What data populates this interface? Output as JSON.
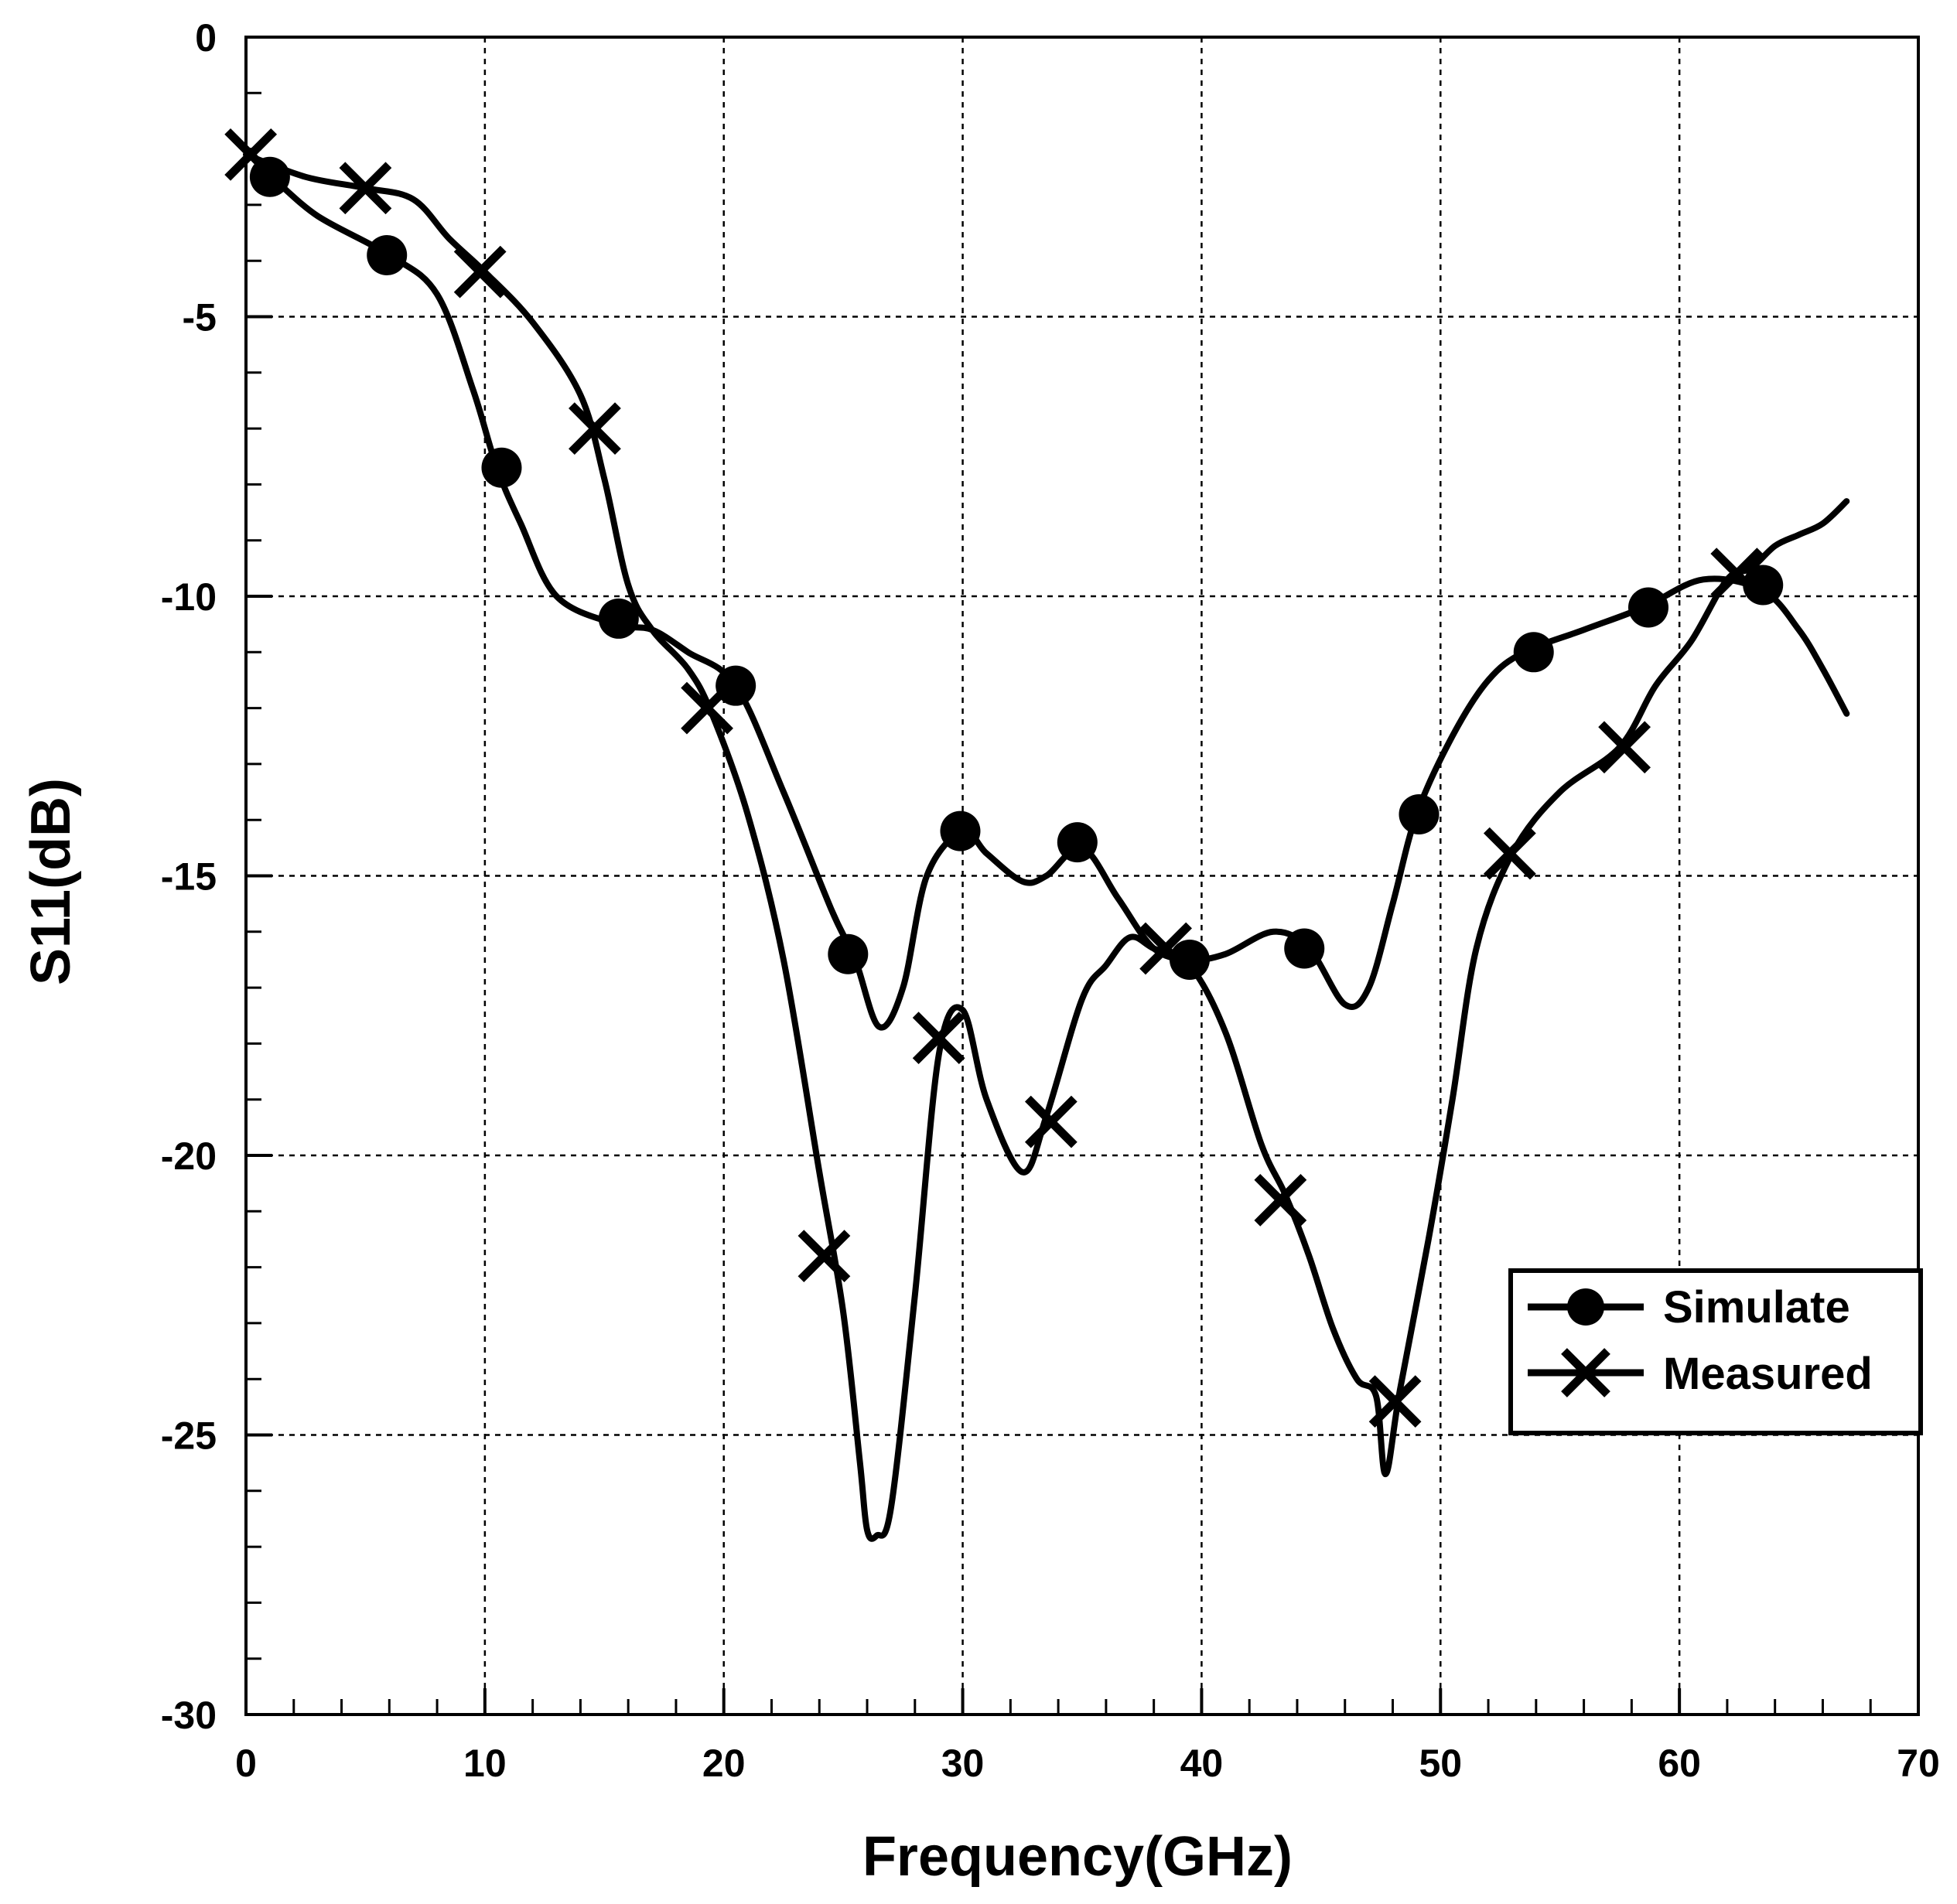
{
  "chart_data": {
    "type": "line",
    "xlabel": "Frequency(GHz)",
    "ylabel": "S11(dB)",
    "xlim": [
      0,
      70
    ],
    "ylim": [
      -30,
      0
    ],
    "x_ticks": [
      0,
      10,
      20,
      30,
      40,
      50,
      60,
      70
    ],
    "y_ticks": [
      0,
      -5,
      -10,
      -15,
      -20,
      -25,
      -30
    ],
    "grid": true,
    "legend_position": "lower-right",
    "series": [
      {
        "name": "Simulate",
        "marker": "circle",
        "color": "#000000",
        "x": [
          0.5,
          1,
          3,
          6,
          8,
          9.5,
          10.5,
          11.5,
          13,
          15.5,
          17,
          18.5,
          20.5,
          22.5,
          24.5,
          25.5,
          26.5,
          27.5,
          28.5,
          30,
          31,
          32.5,
          33.5,
          35,
          36.5,
          38,
          39.5,
          41,
          43,
          44.5,
          46,
          47,
          48,
          49,
          50.5,
          52,
          53.5,
          56,
          58.5,
          61,
          63.5,
          65,
          66,
          67
        ],
        "y": [
          -2.6,
          -2.5,
          -3.2,
          -3.9,
          -4.6,
          -6.3,
          -7.7,
          -8.7,
          -10,
          -10.5,
          -10.6,
          -11,
          -11.6,
          -13.5,
          -15.6,
          -16.5,
          -17.7,
          -17,
          -15,
          -14.2,
          -14.6,
          -15.1,
          -15,
          -14.5,
          -15.4,
          -16.3,
          -16.5,
          -16.4,
          -16,
          -16.3,
          -17.3,
          -17,
          -15.5,
          -13.9,
          -12.5,
          -11.5,
          -11,
          -10.6,
          -10.2,
          -9.7,
          -9.9,
          -10.6,
          -11.3,
          -12.1
        ],
        "marker_x": [
          1,
          5.9,
          10.7,
          15.6,
          20.5,
          25.2,
          29.9,
          34.8,
          39.5,
          44.3,
          49.1,
          53.9,
          58.7,
          63.5
        ],
        "marker_y": [
          -2.5,
          -3.9,
          -7.7,
          -10.4,
          -11.6,
          -16.4,
          -14.2,
          -14.4,
          -16.5,
          -16.3,
          -13.9,
          -11,
          -10.2,
          -9.8
        ]
      },
      {
        "name": "Measured",
        "marker": "x",
        "color": "#000000",
        "x": [
          0,
          2.5,
          5,
          7,
          8.5,
          10,
          12,
          14,
          15,
          16,
          17,
          18.5,
          19.5,
          21,
          22.5,
          24,
          25,
          25.7,
          26,
          26.4,
          27,
          28,
          29,
          30,
          31,
          32.5,
          33.5,
          35,
          36,
          37,
          38,
          39.5,
          41,
          42.5,
          43.5,
          44.5,
          45.5,
          46.5,
          47.3,
          47.7,
          48.3,
          49.5,
          50.5,
          51.5,
          53,
          55,
          57.5,
          59,
          60.5,
          62,
          63,
          64,
          65,
          66,
          67
        ],
        "y": [
          -2.1,
          -2.5,
          -2.7,
          -2.9,
          -3.6,
          -4.2,
          -5.1,
          -6.4,
          -7.9,
          -9.8,
          -10.6,
          -11.3,
          -12.1,
          -13.9,
          -16.5,
          -20.3,
          -22.8,
          -25.5,
          -26.7,
          -26.8,
          -26.3,
          -22.5,
          -18.2,
          -17.4,
          -19,
          -20.3,
          -19.3,
          -17.2,
          -16.6,
          -16.1,
          -16.3,
          -16.6,
          -17.8,
          -19.8,
          -20.7,
          -21.8,
          -23.1,
          -24,
          -24.3,
          -25.7,
          -24.2,
          -21.5,
          -19,
          -16.3,
          -14.6,
          -13.5,
          -12.7,
          -11.6,
          -10.8,
          -9.7,
          -9.5,
          -9.1,
          -8.9,
          -8.7,
          -8.3
        ],
        "marker_x": [
          0.2,
          5,
          9.8,
          14.6,
          19.3,
          24.2,
          29,
          33.7,
          38.5,
          43.3,
          48.1,
          52.9,
          57.7,
          62.4
        ],
        "marker_y": [
          -2.1,
          -2.7,
          -4.2,
          -7.0,
          -12.0,
          -21.8,
          -17.9,
          -19.4,
          -16.3,
          -20.8,
          -24.4,
          -14.6,
          -12.7,
          -9.6
        ]
      }
    ]
  }
}
